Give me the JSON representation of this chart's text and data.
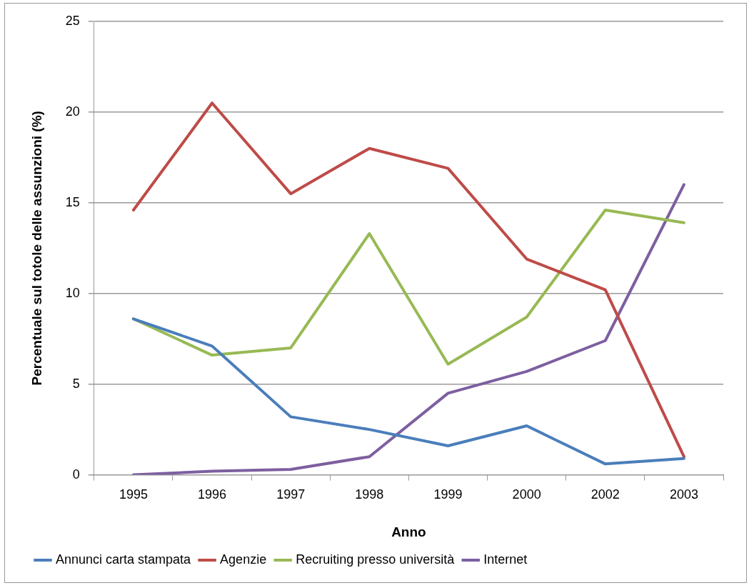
{
  "chart_data": {
    "type": "line",
    "xlabel": "Anno",
    "ylabel": "Percentuale sul totole delle assunzioni (%)",
    "categories": [
      "1995",
      "1996",
      "1997",
      "1998",
      "1999",
      "2000",
      "2002",
      "2003"
    ],
    "series": [
      {
        "name": "Annunci carta stampata",
        "color": "#4a7ebb",
        "values": [
          8.6,
          7.1,
          3.2,
          2.5,
          1.6,
          2.7,
          0.6,
          0.9
        ]
      },
      {
        "name": "Agenzie",
        "color": "#be4b48",
        "values": [
          14.6,
          20.5,
          15.5,
          18.0,
          16.9,
          11.9,
          10.2,
          1.0
        ]
      },
      {
        "name": "Recruiting presso università",
        "color": "#98b954",
        "values": [
          8.6,
          6.6,
          7.0,
          13.3,
          6.1,
          8.7,
          14.6,
          13.9
        ]
      },
      {
        "name": "Internet",
        "color": "#7d5fa0",
        "values": [
          0,
          0.2,
          0.3,
          1.0,
          4.5,
          5.7,
          7.4,
          16.0
        ]
      }
    ],
    "ylim": [
      0,
      25
    ],
    "yticks": [
      0,
      5,
      10,
      15,
      20,
      25
    ],
    "grid": "y",
    "legend": "bottom",
    "marker": "none",
    "line_style": "solid"
  }
}
